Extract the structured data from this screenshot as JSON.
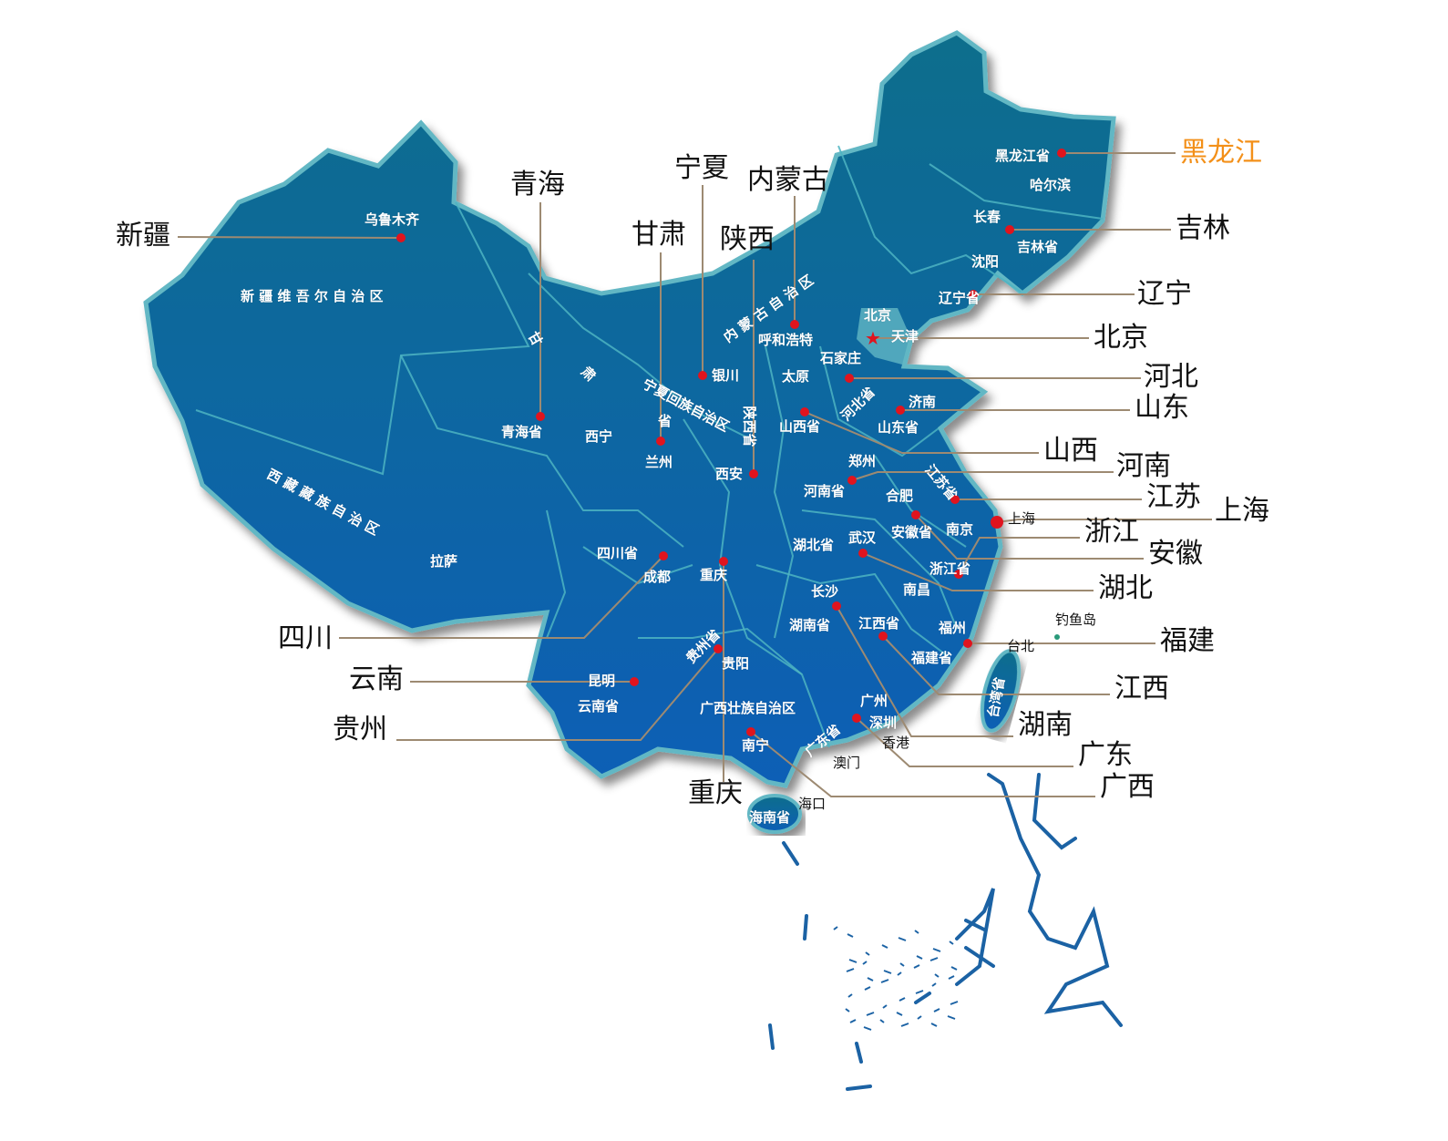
{
  "colors": {
    "land_top": "#0c6e8c",
    "land_bottom": "#075fb6",
    "border": "#4db4c2",
    "coast_glow": "#62b7c4",
    "leader_line": "#9d8a72",
    "dot": "#e0141e",
    "highlight_label": "#f39019",
    "label": "#111111"
  },
  "callouts": [
    {
      "label": "黑龙江",
      "highlight": true
    },
    {
      "label": "吉林"
    },
    {
      "label": "辽宁"
    },
    {
      "label": "北京"
    },
    {
      "label": "河北"
    },
    {
      "label": "山东"
    },
    {
      "label": "山西"
    },
    {
      "label": "河南"
    },
    {
      "label": "江苏"
    },
    {
      "label": "上海"
    },
    {
      "label": "浙江"
    },
    {
      "label": "安徽"
    },
    {
      "label": "湖北"
    },
    {
      "label": "福建"
    },
    {
      "label": "江西"
    },
    {
      "label": "湖南"
    },
    {
      "label": "广东"
    },
    {
      "label": "广西"
    },
    {
      "label": "重庆"
    },
    {
      "label": "贵州"
    },
    {
      "label": "云南"
    },
    {
      "label": "四川"
    },
    {
      "label": "新疆"
    },
    {
      "label": "青海"
    },
    {
      "label": "宁夏"
    },
    {
      "label": "内蒙古"
    },
    {
      "label": "甘肃"
    },
    {
      "label": "陕西"
    }
  ],
  "places": [
    "乌鲁木齐",
    "新 疆 维 吾 尔 自 治 区",
    "甘",
    "肃",
    "省",
    "内 蒙 古 自 治 区",
    "西 藏 藏 族 自 治 区",
    "拉萨",
    "青海省",
    "西宁",
    "兰州",
    "银川",
    "宁夏回族自治区",
    "陕西省",
    "西安",
    "呼和浩特",
    "太原",
    "石家庄",
    "北京",
    "天津",
    "河北省",
    "济南",
    "山东省",
    "山西省",
    "郑州",
    "河南省",
    "江苏省",
    "合肥",
    "安徽省",
    "南京",
    "上海",
    "湖北省",
    "武汉",
    "浙江省",
    "南昌",
    "长沙",
    "湖南省",
    "江西省",
    "福州",
    "福建省",
    "台北",
    "台湾省",
    "钓鱼岛",
    "广州",
    "深圳",
    "香港",
    "澳门",
    "广东省",
    "广西壮族自治区",
    "南宁",
    "海口",
    "海南省",
    "贵州省",
    "贵阳",
    "昆明",
    "云南省",
    "四川省",
    "成都",
    "重庆",
    "黑龙江省",
    "哈尔滨",
    "长春",
    "吉林省",
    "沈阳",
    "辽宁省"
  ],
  "capital_icon": "red-star-icon"
}
